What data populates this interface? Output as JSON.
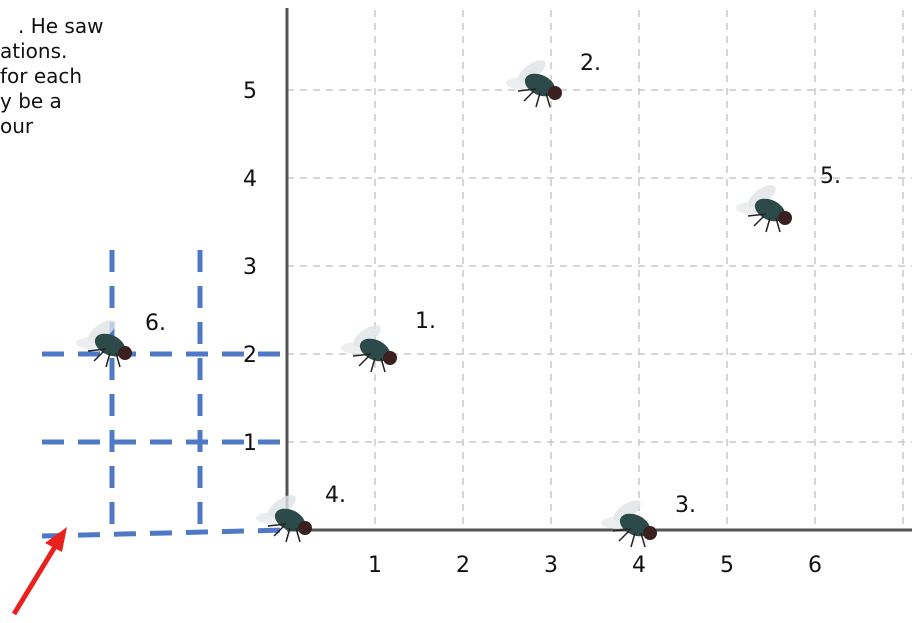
{
  "intro": {
    "lines": [
      ". He saw",
      "ations.",
      "for each",
      "y be a",
      "our"
    ]
  },
  "grid": {
    "x_labels": [
      "1",
      "2",
      "3",
      "4",
      "5",
      "6"
    ],
    "y_labels": [
      "1",
      "2",
      "3",
      "4",
      "5"
    ]
  },
  "flies": [
    {
      "label": "1."
    },
    {
      "label": "2."
    },
    {
      "label": "3."
    },
    {
      "label": "4."
    },
    {
      "label": "5."
    },
    {
      "label": "6."
    }
  ]
}
